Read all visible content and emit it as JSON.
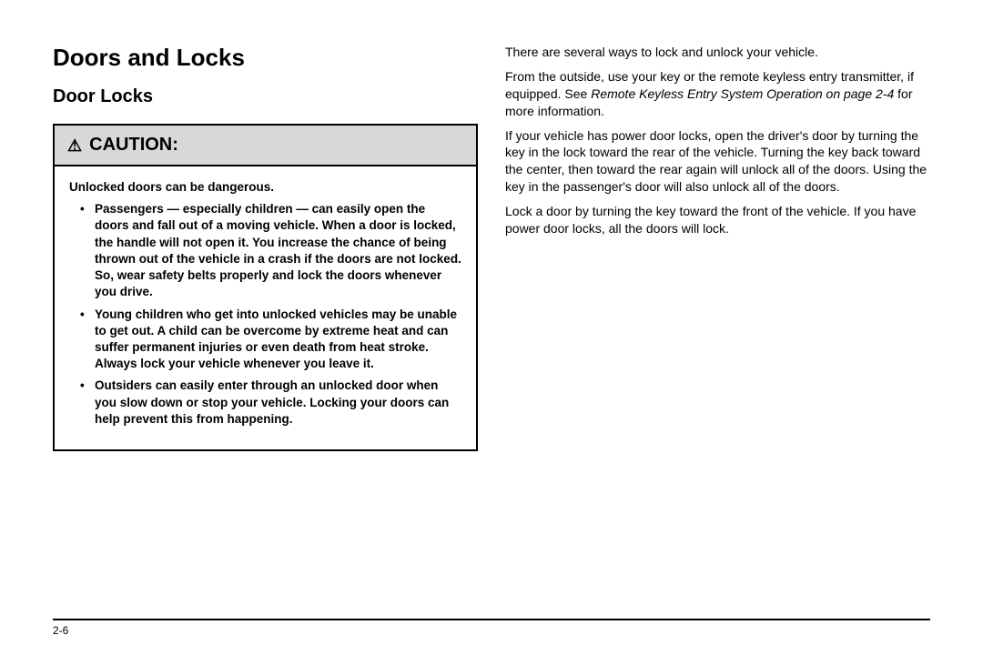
{
  "page": {
    "section_title": "Doors and Locks",
    "subsection_title": "Door Locks",
    "page_number": "2-6"
  },
  "caution": {
    "header_label": "CAUTION:",
    "intro": "Unlocked doors can be dangerous.",
    "bullets": [
      "Passengers — especially children — can easily open the doors and fall out of a moving vehicle. When a door is locked, the handle will not open it. You increase the chance of being thrown out of the vehicle in a crash if the doors are not locked. So, wear safety belts properly and lock the doors whenever you drive.",
      "Young children who get into unlocked vehicles may be unable to get out. A child can be overcome by extreme heat and can suffer permanent injuries or even death from heat stroke. Always lock your vehicle whenever you leave it.",
      "Outsiders can easily enter through an unlocked door when you slow down or stop your vehicle. Locking your doors can help prevent this from happening."
    ]
  },
  "right": {
    "p1": "There are several ways to lock and unlock your vehicle.",
    "p2a": "From the outside, use your key or the remote keyless entry transmitter, if equipped. See ",
    "p2_ref": "Remote Keyless Entry System Operation on page 2-4",
    "p2b": " for more information.",
    "p3": "If your vehicle has power door locks, open the driver's door by turning the key in the lock toward the rear of the vehicle. Turning the key back toward the center, then toward the rear again will unlock all of the doors. Using the key in the passenger's door will also unlock all of the doors.",
    "p4": "Lock a door by turning the key toward the front of the vehicle. If you have power door locks, all the doors will lock."
  }
}
